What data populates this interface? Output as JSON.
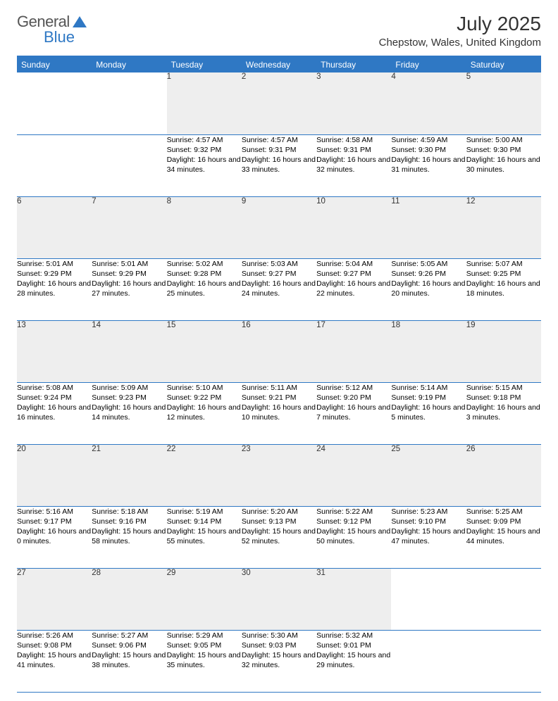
{
  "logo": {
    "text_general": "General",
    "text_blue": "Blue"
  },
  "month_title": "July 2025",
  "location": "Chepstow, Wales, United Kingdom",
  "colors": {
    "header_bg": "#2f78c4",
    "header_text": "#ffffff",
    "daynum_bg": "#eeeeee",
    "border": "#2f78c4",
    "text": "#000000"
  },
  "weekdays": [
    "Sunday",
    "Monday",
    "Tuesday",
    "Wednesday",
    "Thursday",
    "Friday",
    "Saturday"
  ],
  "weeks": [
    [
      null,
      null,
      {
        "n": "1",
        "sunrise": "Sunrise: 4:57 AM",
        "sunset": "Sunset: 9:32 PM",
        "daylight": "Daylight: 16 hours and 34 minutes."
      },
      {
        "n": "2",
        "sunrise": "Sunrise: 4:57 AM",
        "sunset": "Sunset: 9:31 PM",
        "daylight": "Daylight: 16 hours and 33 minutes."
      },
      {
        "n": "3",
        "sunrise": "Sunrise: 4:58 AM",
        "sunset": "Sunset: 9:31 PM",
        "daylight": "Daylight: 16 hours and 32 minutes."
      },
      {
        "n": "4",
        "sunrise": "Sunrise: 4:59 AM",
        "sunset": "Sunset: 9:30 PM",
        "daylight": "Daylight: 16 hours and 31 minutes."
      },
      {
        "n": "5",
        "sunrise": "Sunrise: 5:00 AM",
        "sunset": "Sunset: 9:30 PM",
        "daylight": "Daylight: 16 hours and 30 minutes."
      }
    ],
    [
      {
        "n": "6",
        "sunrise": "Sunrise: 5:01 AM",
        "sunset": "Sunset: 9:29 PM",
        "daylight": "Daylight: 16 hours and 28 minutes."
      },
      {
        "n": "7",
        "sunrise": "Sunrise: 5:01 AM",
        "sunset": "Sunset: 9:29 PM",
        "daylight": "Daylight: 16 hours and 27 minutes."
      },
      {
        "n": "8",
        "sunrise": "Sunrise: 5:02 AM",
        "sunset": "Sunset: 9:28 PM",
        "daylight": "Daylight: 16 hours and 25 minutes."
      },
      {
        "n": "9",
        "sunrise": "Sunrise: 5:03 AM",
        "sunset": "Sunset: 9:27 PM",
        "daylight": "Daylight: 16 hours and 24 minutes."
      },
      {
        "n": "10",
        "sunrise": "Sunrise: 5:04 AM",
        "sunset": "Sunset: 9:27 PM",
        "daylight": "Daylight: 16 hours and 22 minutes."
      },
      {
        "n": "11",
        "sunrise": "Sunrise: 5:05 AM",
        "sunset": "Sunset: 9:26 PM",
        "daylight": "Daylight: 16 hours and 20 minutes."
      },
      {
        "n": "12",
        "sunrise": "Sunrise: 5:07 AM",
        "sunset": "Sunset: 9:25 PM",
        "daylight": "Daylight: 16 hours and 18 minutes."
      }
    ],
    [
      {
        "n": "13",
        "sunrise": "Sunrise: 5:08 AM",
        "sunset": "Sunset: 9:24 PM",
        "daylight": "Daylight: 16 hours and 16 minutes."
      },
      {
        "n": "14",
        "sunrise": "Sunrise: 5:09 AM",
        "sunset": "Sunset: 9:23 PM",
        "daylight": "Daylight: 16 hours and 14 minutes."
      },
      {
        "n": "15",
        "sunrise": "Sunrise: 5:10 AM",
        "sunset": "Sunset: 9:22 PM",
        "daylight": "Daylight: 16 hours and 12 minutes."
      },
      {
        "n": "16",
        "sunrise": "Sunrise: 5:11 AM",
        "sunset": "Sunset: 9:21 PM",
        "daylight": "Daylight: 16 hours and 10 minutes."
      },
      {
        "n": "17",
        "sunrise": "Sunrise: 5:12 AM",
        "sunset": "Sunset: 9:20 PM",
        "daylight": "Daylight: 16 hours and 7 minutes."
      },
      {
        "n": "18",
        "sunrise": "Sunrise: 5:14 AM",
        "sunset": "Sunset: 9:19 PM",
        "daylight": "Daylight: 16 hours and 5 minutes."
      },
      {
        "n": "19",
        "sunrise": "Sunrise: 5:15 AM",
        "sunset": "Sunset: 9:18 PM",
        "daylight": "Daylight: 16 hours and 3 minutes."
      }
    ],
    [
      {
        "n": "20",
        "sunrise": "Sunrise: 5:16 AM",
        "sunset": "Sunset: 9:17 PM",
        "daylight": "Daylight: 16 hours and 0 minutes."
      },
      {
        "n": "21",
        "sunrise": "Sunrise: 5:18 AM",
        "sunset": "Sunset: 9:16 PM",
        "daylight": "Daylight: 15 hours and 58 minutes."
      },
      {
        "n": "22",
        "sunrise": "Sunrise: 5:19 AM",
        "sunset": "Sunset: 9:14 PM",
        "daylight": "Daylight: 15 hours and 55 minutes."
      },
      {
        "n": "23",
        "sunrise": "Sunrise: 5:20 AM",
        "sunset": "Sunset: 9:13 PM",
        "daylight": "Daylight: 15 hours and 52 minutes."
      },
      {
        "n": "24",
        "sunrise": "Sunrise: 5:22 AM",
        "sunset": "Sunset: 9:12 PM",
        "daylight": "Daylight: 15 hours and 50 minutes."
      },
      {
        "n": "25",
        "sunrise": "Sunrise: 5:23 AM",
        "sunset": "Sunset: 9:10 PM",
        "daylight": "Daylight: 15 hours and 47 minutes."
      },
      {
        "n": "26",
        "sunrise": "Sunrise: 5:25 AM",
        "sunset": "Sunset: 9:09 PM",
        "daylight": "Daylight: 15 hours and 44 minutes."
      }
    ],
    [
      {
        "n": "27",
        "sunrise": "Sunrise: 5:26 AM",
        "sunset": "Sunset: 9:08 PM",
        "daylight": "Daylight: 15 hours and 41 minutes."
      },
      {
        "n": "28",
        "sunrise": "Sunrise: 5:27 AM",
        "sunset": "Sunset: 9:06 PM",
        "daylight": "Daylight: 15 hours and 38 minutes."
      },
      {
        "n": "29",
        "sunrise": "Sunrise: 5:29 AM",
        "sunset": "Sunset: 9:05 PM",
        "daylight": "Daylight: 15 hours and 35 minutes."
      },
      {
        "n": "30",
        "sunrise": "Sunrise: 5:30 AM",
        "sunset": "Sunset: 9:03 PM",
        "daylight": "Daylight: 15 hours and 32 minutes."
      },
      {
        "n": "31",
        "sunrise": "Sunrise: 5:32 AM",
        "sunset": "Sunset: 9:01 PM",
        "daylight": "Daylight: 15 hours and 29 minutes."
      },
      null,
      null
    ]
  ]
}
